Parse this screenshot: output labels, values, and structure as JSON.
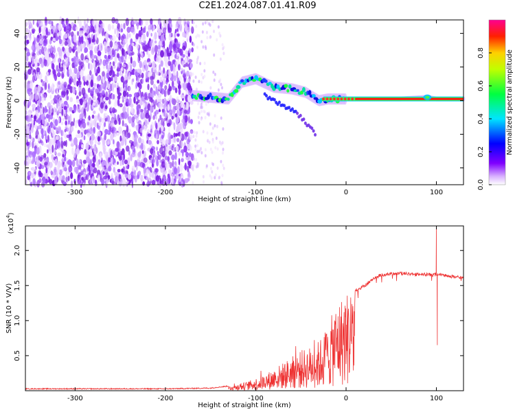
{
  "title": "C2E1.2024.087.01.41.R09",
  "chart_data": [
    {
      "type": "heatmap",
      "xlabel": "Height of straight line (km)",
      "ylabel": "Frequency (Hz)",
      "xlim": [
        -355,
        130
      ],
      "ylim": [
        -50,
        48
      ],
      "xticks": [
        -300,
        -200,
        -100,
        0,
        100
      ],
      "yticks": [
        -40,
        -20,
        0,
        20,
        40
      ],
      "colorbar": {
        "label": "Normalized spectral amplitude",
        "range": [
          0,
          1
        ],
        "ticks": [
          "0.0",
          "0.2",
          "0.4",
          "0.6",
          "0.8"
        ],
        "colors": [
          "#ffffff",
          "#8000ff",
          "#0000ff",
          "#00ffff",
          "#00ff00",
          "#ffff00",
          "#ff0000",
          "#ff00a0"
        ]
      },
      "features": {
        "noise_region_x": [
          -355,
          -170
        ],
        "sparse_noise_x": [
          -170,
          -135
        ],
        "main_track": {
          "x": [
            -170,
            -130,
            -115,
            -100,
            -80,
            -60,
            -45,
            -30,
            -20,
            0,
            20,
            60,
            90,
            100,
            130
          ],
          "y": [
            3,
            1,
            11,
            13,
            8,
            7,
            5,
            0,
            1,
            1,
            1,
            1,
            2,
            1,
            1
          ]
        },
        "lower_branch": {
          "x": [
            -90,
            -70,
            -55,
            -40,
            -33
          ],
          "y": [
            3,
            -3,
            -7,
            -16,
            -20
          ]
        }
      }
    },
    {
      "type": "line",
      "xlabel": "Height of straight line (km)",
      "ylabel": "SNR (10 * V/V)",
      "y_multiplier": "(x10",
      "y_multiplier_exp": "4",
      "xlim": [
        -355,
        130
      ],
      "ylim": [
        0,
        2.35
      ],
      "xticks": [
        -300,
        -200,
        -100,
        0,
        100
      ],
      "yticks": [
        0.5,
        1.0,
        1.5,
        2.0
      ],
      "color": "#ee3333",
      "envelope": {
        "x": [
          -355,
          -200,
          -150,
          -130,
          -110,
          -90,
          -70,
          -50,
          -40,
          -30,
          -20,
          -10,
          0,
          10,
          20,
          30,
          40,
          60,
          80,
          100,
          120,
          130
        ],
        "y": [
          0.02,
          0.02,
          0.03,
          0.06,
          0.12,
          0.22,
          0.38,
          0.55,
          0.6,
          0.68,
          0.9,
          1.2,
          1.35,
          1.45,
          1.52,
          1.62,
          1.68,
          1.7,
          1.68,
          1.68,
          1.65,
          1.63
        ]
      },
      "spikes": [
        {
          "x": 100,
          "y": 2.35
        },
        {
          "x": 101,
          "y": 0.65
        }
      ]
    }
  ]
}
